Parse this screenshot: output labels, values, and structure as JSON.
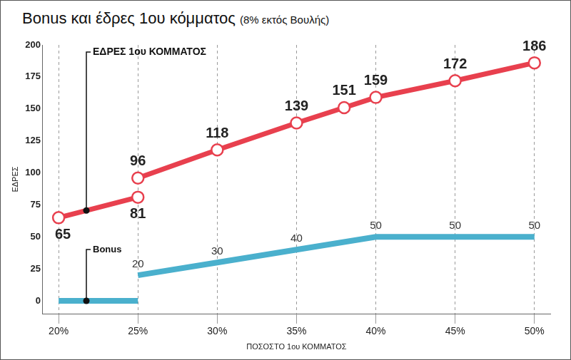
{
  "chart_data": {
    "type": "line",
    "title": "Bonus και έδρες 1ου κόμματος",
    "subtitle": "(8% εκτός Βουλής)",
    "x_label": "ΠΟΣΟΣΤΟ 1ου ΚΟΜΜΑΤΟΣ",
    "y_label": "ΕΔΡΕΣ",
    "series": [
      {
        "name": "ΕΔΡΕΣ 1ου ΚΟΜΜΑΤΟΣ",
        "color": "#e8404e",
        "marker": "circle",
        "line_style": "solid",
        "x": [
          20,
          25,
          25,
          25,
          30,
          35,
          38,
          40,
          45,
          50
        ],
        "values": [
          65,
          81,
          null,
          96,
          118,
          139,
          151,
          159,
          172,
          186
        ],
        "data_labels": true
      },
      {
        "name": "Bonus",
        "color": "#4ab0cd",
        "marker": "none",
        "line_style": "solid",
        "x": [
          20,
          25,
          25,
          25,
          30,
          35,
          40,
          45,
          50
        ],
        "values": [
          0,
          0,
          null,
          20,
          30,
          40,
          50,
          50,
          50
        ],
        "data_labels": true,
        "value_labels": [
          null,
          null,
          null,
          "20",
          "30",
          "40",
          "50",
          "50",
          "50"
        ]
      }
    ],
    "xlim": [
      19,
      51
    ],
    "xticks": [
      {
        "value": 20,
        "label": "20%"
      },
      {
        "value": 25,
        "label": "25%"
      },
      {
        "value": 30,
        "label": "30%"
      },
      {
        "value": 35,
        "label": "35%"
      },
      {
        "value": 40,
        "label": "40%"
      },
      {
        "value": 45,
        "label": "45%"
      },
      {
        "value": 50,
        "label": "50%"
      }
    ],
    "ylim": [
      -10,
      200
    ],
    "yticks": [
      0,
      25,
      50,
      75,
      100,
      125,
      150,
      175,
      200
    ],
    "grid": "x"
  }
}
